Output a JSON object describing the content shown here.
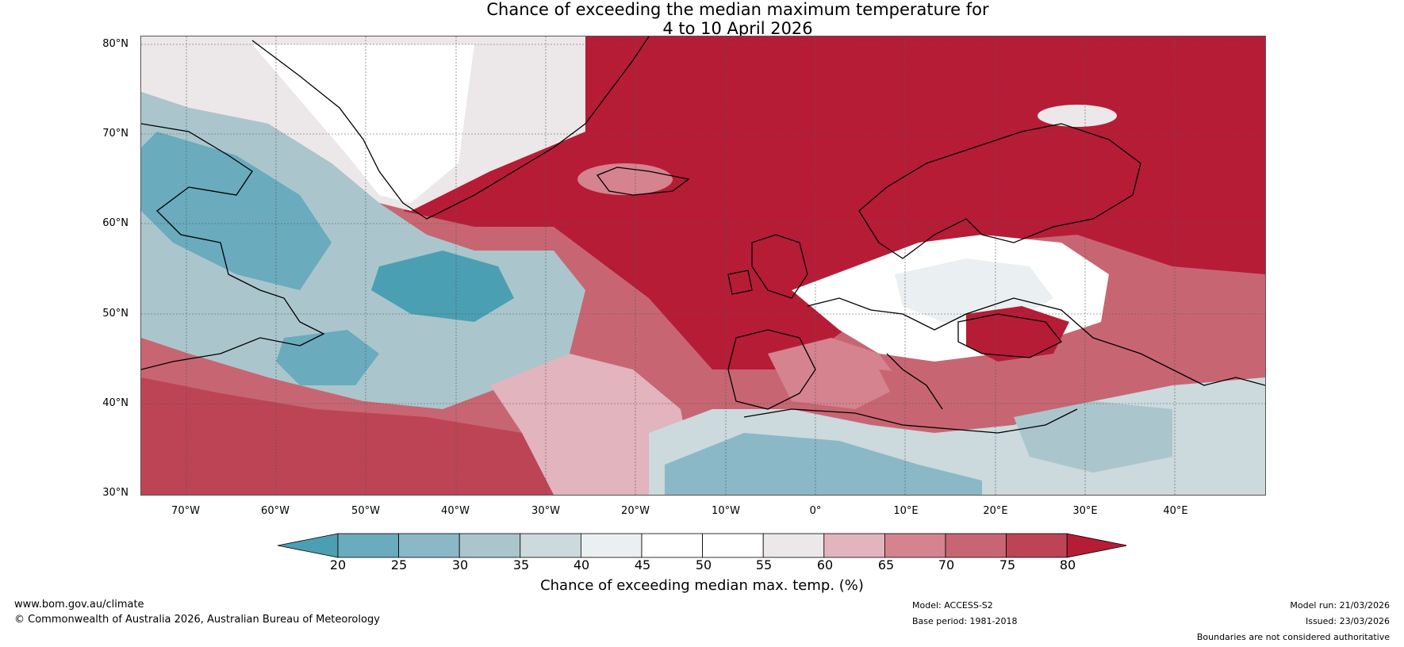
{
  "title": {
    "line1": "Chance of exceeding the median maximum temperature for",
    "line2": "4 to 10 April 2026"
  },
  "map": {
    "latitude_labels": [
      "80°N",
      "70°N",
      "60°N",
      "50°N",
      "40°N",
      "30°N"
    ],
    "longitude_labels": [
      "70°W",
      "60°W",
      "50°W",
      "40°W",
      "30°W",
      "20°W",
      "10°W",
      "0°",
      "10°E",
      "20°E",
      "30°E",
      "40°E"
    ],
    "regions": [
      {
        "name": "north-atlantic-warm",
        "bin": "75-80"
      },
      {
        "name": "greenland-cool",
        "bin": "50-55"
      },
      {
        "name": "labrador-sea-cool",
        "bin": "20-25"
      },
      {
        "name": "scandinavia-warm",
        "bin": "75-80"
      },
      {
        "name": "central-europe-near-median",
        "bin": "45-50"
      },
      {
        "name": "north-africa-cool",
        "bin": "25-30"
      },
      {
        "name": "subtropical-atlantic-warm",
        "bin": "75-80"
      }
    ]
  },
  "colorbar": {
    "ticks": [
      "20",
      "25",
      "30",
      "35",
      "40",
      "45",
      "50",
      "55",
      "60",
      "65",
      "70",
      "75",
      "80"
    ],
    "colors": [
      "#4b9fb2",
      "#6aabbd",
      "#8ab8c6",
      "#aac6cc",
      "#ccd9dd",
      "#eaeff1",
      "#ffffff",
      "#ffffff",
      "#ece8e9",
      "#e2b4bd",
      "#d4838f",
      "#c76672",
      "#bd4455",
      "#b71c37"
    ],
    "label": "Chance of exceeding median max. temp. (%)"
  },
  "footer": {
    "website": "www.bom.gov.au/climate",
    "copyright": "© Commonwealth of Australia 2026, Australian Bureau of Meteorology",
    "model": "Model: ACCESS-S2",
    "base_period": "Base period: 1981-2018",
    "model_run": "Model run: 21/03/2026",
    "issued": "Issued: 23/03/2026",
    "disclaimer": "Boundaries are not considered authoritative"
  }
}
